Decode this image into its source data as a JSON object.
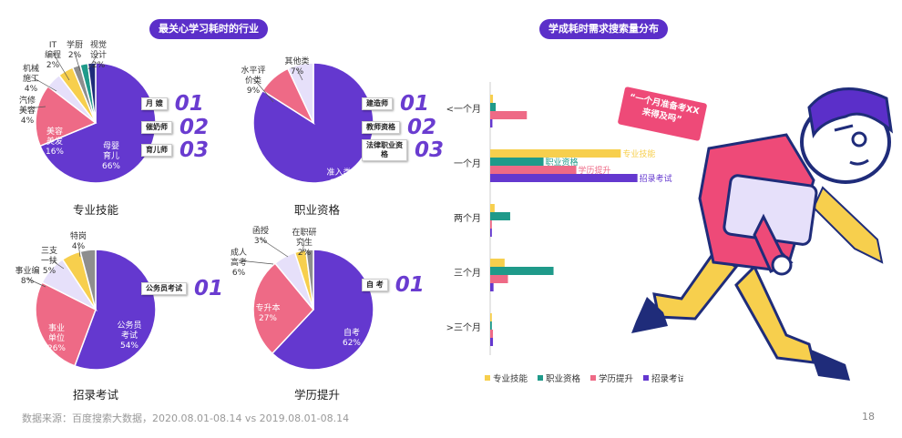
{
  "header_left": "最关心学习耗时的行业",
  "header_right": "学成耗时需求搜索量分布",
  "footer": "数据来源：百度搜索大数据，2020.08.01-08.14 vs 2019.08.01-08.14",
  "page_number": "18",
  "speech_bubble": "“一个月准备考XX来得及吗”",
  "colors": {
    "purple": "#6438cf",
    "pink": "#ee6a86",
    "lavender": "#e6e0fa",
    "yellow": "#f7cf4d",
    "teal": "#1f9a8a",
    "grey": "#8e8e8e",
    "navy": "#1f2c7a",
    "darkteal": "#0d6b63"
  },
  "chart_data": [
    {
      "type": "pie",
      "title": "专业技能",
      "slices": [
        {
          "label": "母婴育儿",
          "value": 66
        },
        {
          "label": "美容美发",
          "value": 16
        },
        {
          "label": "汽修美容",
          "value": 4
        },
        {
          "label": "机械施工",
          "value": 4
        },
        {
          "label": "IT编程",
          "value": 2
        },
        {
          "label": "学厨",
          "value": 2
        },
        {
          "label": "视觉设计",
          "value": 2
        }
      ],
      "ranking": [
        {
          "label": "月 嫂",
          "num": "01"
        },
        {
          "label": "催奶师",
          "num": "02"
        },
        {
          "label": "育儿师",
          "num": "03"
        }
      ]
    },
    {
      "type": "pie",
      "title": "职业资格",
      "slices": [
        {
          "label": "准入类",
          "value": 84
        },
        {
          "label": "水平评价类",
          "value": 9
        },
        {
          "label": "其他类",
          "value": 7
        }
      ],
      "ranking": [
        {
          "label": "建造师",
          "num": "01"
        },
        {
          "label": "教师资格",
          "num": "02"
        },
        {
          "label": "法律职业资格",
          "num": "03"
        }
      ]
    },
    {
      "type": "pie",
      "title": "招录考试",
      "slices": [
        {
          "label": "公务员考试",
          "value": 54
        },
        {
          "label": "事业单位",
          "value": 26
        },
        {
          "label": "事业编",
          "value": 8
        },
        {
          "label": "三支一扶",
          "value": 5
        },
        {
          "label": "特岗",
          "value": 4
        }
      ],
      "ranking": [
        {
          "label": "公务员考试",
          "num": "01"
        }
      ]
    },
    {
      "type": "pie",
      "title": "学历提升",
      "slices": [
        {
          "label": "自考",
          "value": 62
        },
        {
          "label": "专升本",
          "value": 27
        },
        {
          "label": "成人高考",
          "value": 6
        },
        {
          "label": "函授",
          "value": 3
        },
        {
          "label": "在职研究生",
          "value": 2
        }
      ],
      "ranking": [
        {
          "label": "自 考",
          "num": "01"
        }
      ]
    },
    {
      "type": "bar",
      "orientation": "horizontal",
      "title": "学成耗时需求搜索量分布",
      "categories": [
        "<一个月",
        "一个月",
        "两个月",
        "三个月",
        ">三个月"
      ],
      "series": [
        {
          "name": "专业技能",
          "values": [
            0.5,
            23.5,
            0.8,
            2.6,
            0.3
          ]
        },
        {
          "name": "职业资格",
          "values": [
            1.0,
            9.6,
            3.6,
            11.4,
            0.3
          ]
        },
        {
          "name": "学历提升",
          "values": [
            6.6,
            15.5,
            0.3,
            3.2,
            0.5
          ]
        },
        {
          "name": "招录考试",
          "values": [
            0.4,
            26.5,
            0.3,
            0.6,
            0.5
          ]
        }
      ],
      "bar_labels": [
        "专业技能",
        "职业资格",
        "学历提升",
        "招录考试"
      ]
    }
  ]
}
